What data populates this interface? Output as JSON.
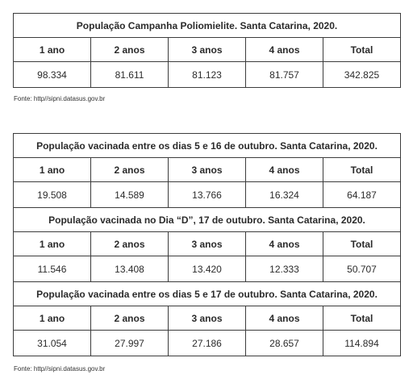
{
  "table1": {
    "title": "População Campanha Poliomielite. Santa Catarina, 2020.",
    "headers": [
      "1 ano",
      "2 anos",
      "3 anos",
      "4 anos",
      "Total"
    ],
    "values": [
      "98.334",
      "81.611",
      "81.123",
      "81.757",
      "342.825"
    ]
  },
  "source1": "Fonte: http//sipni.datasus.gov.br",
  "table2": {
    "sections": [
      {
        "title": "População vacinada entre os dias 5 e 16 de outubro. Santa Catarina, 2020.",
        "headers": [
          "1 ano",
          "2 anos",
          "3 anos",
          "4 anos",
          "Total"
        ],
        "values": [
          "19.508",
          "14.589",
          "13.766",
          "16.324",
          "64.187"
        ]
      },
      {
        "title": "População vacinada no Dia “D”, 17 de outubro. Santa Catarina, 2020.",
        "headers": [
          "1 ano",
          "2 anos",
          "3 anos",
          "4 anos",
          "Total"
        ],
        "values": [
          "11.546",
          "13.408",
          "13.420",
          "12.333",
          "50.707"
        ]
      },
      {
        "title": "População vacinada entre os dias 5 e 17 de outubro. Santa Catarina, 2020.",
        "headers": [
          "1 ano",
          "2 anos",
          "3 anos",
          "4 anos",
          "Total"
        ],
        "values": [
          "31.054",
          "27.997",
          "27.186",
          "28.657",
          "114.894"
        ]
      }
    ]
  },
  "source2": "Fonte: http//sipni.datasus.gov.br"
}
